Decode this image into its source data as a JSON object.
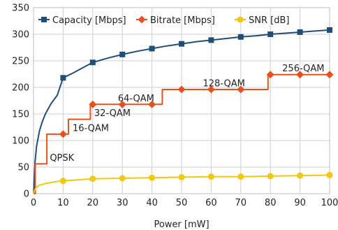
{
  "chart_data": {
    "type": "line",
    "xlabel": "Power [mW]",
    "ylabel": "",
    "xlim": [
      0,
      100
    ],
    "ylim": [
      0,
      350
    ],
    "x_ticks": [
      0,
      10,
      20,
      30,
      40,
      50,
      60,
      70,
      80,
      90,
      100
    ],
    "y_ticks": [
      0,
      50,
      100,
      150,
      200,
      250,
      300,
      350
    ],
    "grid": true,
    "legend_position": "top",
    "series": [
      {
        "name": "Capacity [Mbps]",
        "color": "#1f4e79",
        "marker": "square",
        "marker_x": [
          10,
          20,
          30,
          40,
          50,
          60,
          70,
          80,
          90,
          100
        ],
        "marker_y": [
          218,
          247,
          262,
          273,
          282,
          289,
          295,
          300,
          304,
          308
        ],
        "curve_x": [
          0.05,
          0.2,
          0.5,
          1,
          2,
          3,
          4,
          5,
          6,
          8,
          10,
          13,
          16,
          20,
          25,
          30,
          35,
          40,
          45,
          50,
          55,
          60,
          65,
          70,
          75,
          80,
          85,
          90,
          95,
          100
        ],
        "curve_y": [
          0,
          22,
          58,
          88,
          118,
          136,
          150,
          160,
          170,
          185,
          218,
          226,
          235,
          247,
          255,
          262,
          268,
          273,
          278,
          282,
          286,
          289,
          292,
          295,
          297,
          300,
          302,
          304,
          306,
          308
        ]
      },
      {
        "name": "Bitrate [Mbps]",
        "color": "#e8501f",
        "marker": "diamond",
        "marker_x": [
          10,
          20,
          30,
          40,
          50,
          60,
          70,
          80,
          90,
          100
        ],
        "marker_y": [
          112,
          168,
          168,
          168,
          196,
          196,
          196,
          224,
          224,
          224
        ],
        "step_x": [
          0,
          0.6,
          0.6,
          4.5,
          4.5,
          11.8,
          11.8,
          19.2,
          19.2,
          43.5,
          43.5,
          79.2,
          79.2,
          100
        ],
        "step_y": [
          0,
          0,
          56,
          56,
          112,
          112,
          140,
          140,
          168,
          168,
          196,
          196,
          224,
          224
        ]
      },
      {
        "name": "SNR [dB]",
        "color": "#f2c80f",
        "marker": "circle",
        "marker_x": [
          10,
          20,
          30,
          40,
          50,
          60,
          70,
          80,
          90,
          100
        ],
        "marker_y": [
          24,
          28,
          29,
          30,
          31,
          32,
          32,
          33,
          34,
          35
        ],
        "curve_x": [
          0.05,
          0.3,
          1,
          2,
          4,
          6,
          8,
          10,
          15,
          20,
          30,
          40,
          50,
          60,
          70,
          80,
          90,
          100
        ],
        "curve_y": [
          0,
          6,
          12,
          16,
          19,
          21,
          23,
          24,
          26,
          28,
          29,
          30,
          31,
          32,
          32,
          33,
          34,
          35
        ]
      }
    ],
    "annotations": [
      {
        "text": "QPSK",
        "x": 5.5,
        "y": 62
      },
      {
        "text": "16-QAM",
        "x": 13.2,
        "y": 118
      },
      {
        "text": "32-QAM",
        "x": 20.5,
        "y": 146
      },
      {
        "text": "64-QAM",
        "x": 28.5,
        "y": 174
      },
      {
        "text": "128-QAM",
        "x": 57.2,
        "y": 202
      },
      {
        "text": "256-QAM",
        "x": 84,
        "y": 230
      }
    ]
  }
}
